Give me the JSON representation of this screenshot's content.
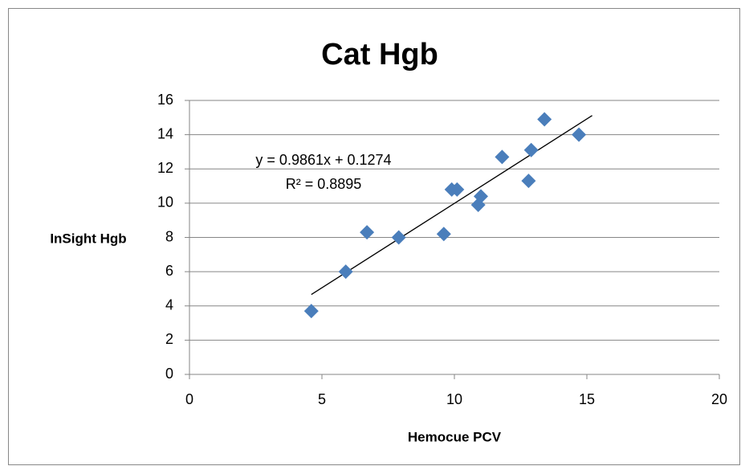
{
  "chart_data": {
    "type": "scatter",
    "title": "Cat Hgb",
    "x_label": "Hemocue PCV",
    "y_label": "InSight Hgb",
    "series": [
      {
        "name": "Cat Hgb",
        "color": "#4a7ebb",
        "x": [
          4.6,
          5.9,
          6.7,
          7.9,
          9.6,
          9.9,
          10.1,
          10.9,
          11.0,
          11.8,
          12.8,
          12.9,
          13.4,
          14.7
        ],
        "values": [
          3.7,
          6.0,
          8.3,
          8.0,
          8.2,
          10.8,
          10.8,
          9.9,
          10.4,
          12.7,
          11.3,
          13.1,
          14.9,
          14.0
        ]
      }
    ],
    "trendline": {
      "equation": "y = 0.9861x + 0.1274",
      "r_squared": "R² = 0.8895",
      "slope": 0.9861,
      "intercept": 0.1274,
      "x_range": [
        4.6,
        15.2
      ]
    },
    "xlim": [
      0,
      20
    ],
    "xticks": [
      0,
      5,
      10,
      15,
      20
    ],
    "ylim": [
      0,
      16
    ],
    "yticks": [
      0,
      2,
      4,
      6,
      8,
      10,
      12,
      14,
      16
    ],
    "grid": true
  }
}
